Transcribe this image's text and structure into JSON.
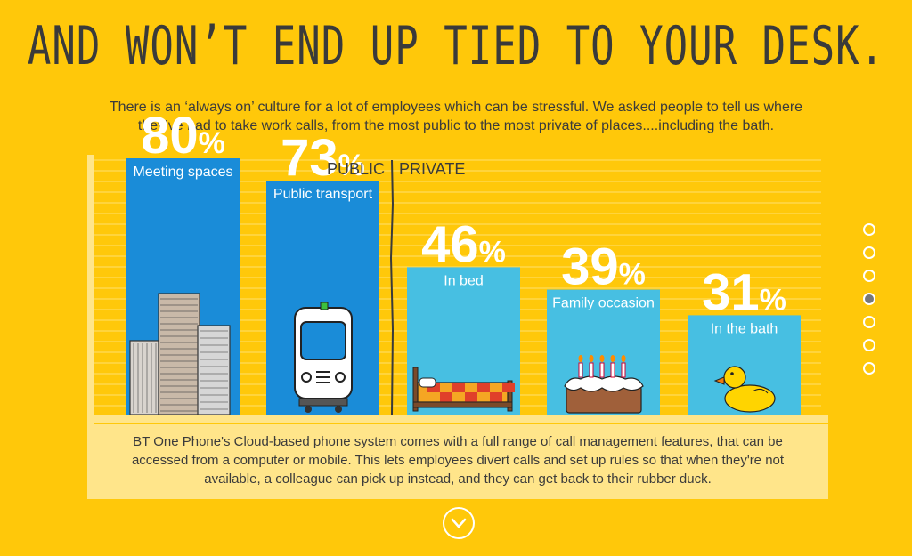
{
  "title": "AND WON’T END UP TIED TO YOUR DESK.",
  "subtitle": "There is an ‘always on’ culture for a lot of employees which can be stressful. We asked people to tell us where they’ve had to take work calls, from the most public to the most private of places....including the bath.",
  "divider": {
    "left_label": "PUBLIC",
    "right_label": "PRIVATE"
  },
  "chart_data": {
    "type": "bar",
    "categories": [
      "Meeting spaces",
      "Public transport",
      "In bed",
      "Family occasion",
      "In the bath"
    ],
    "values": [
      80,
      73,
      46,
      39,
      31
    ],
    "value_labels": [
      "80%",
      "73%",
      "46%",
      "39%",
      "31%"
    ],
    "groups": [
      "PUBLIC",
      "PUBLIC",
      "PRIVATE",
      "PRIVATE",
      "PRIVATE"
    ],
    "ylim": [
      0,
      100
    ],
    "grid": true,
    "colors": {
      "public": "#1A8CD8",
      "private": "#47BFE2"
    }
  },
  "footer": "BT One Phone's Cloud-based phone system comes with a full range of call management features, that can be accessed from a computer or mobile. This lets employees divert calls and set up rules so that when they're not available, a colleague can pick up instead, and they can get back to their rubber duck.",
  "nav": {
    "dots": 7,
    "active_index": 3
  },
  "icons": [
    "office-buildings-icon",
    "train-icon",
    "bed-icon",
    "birthday-cake-icon",
    "rubber-duck-icon",
    "chevron-down-icon"
  ]
}
